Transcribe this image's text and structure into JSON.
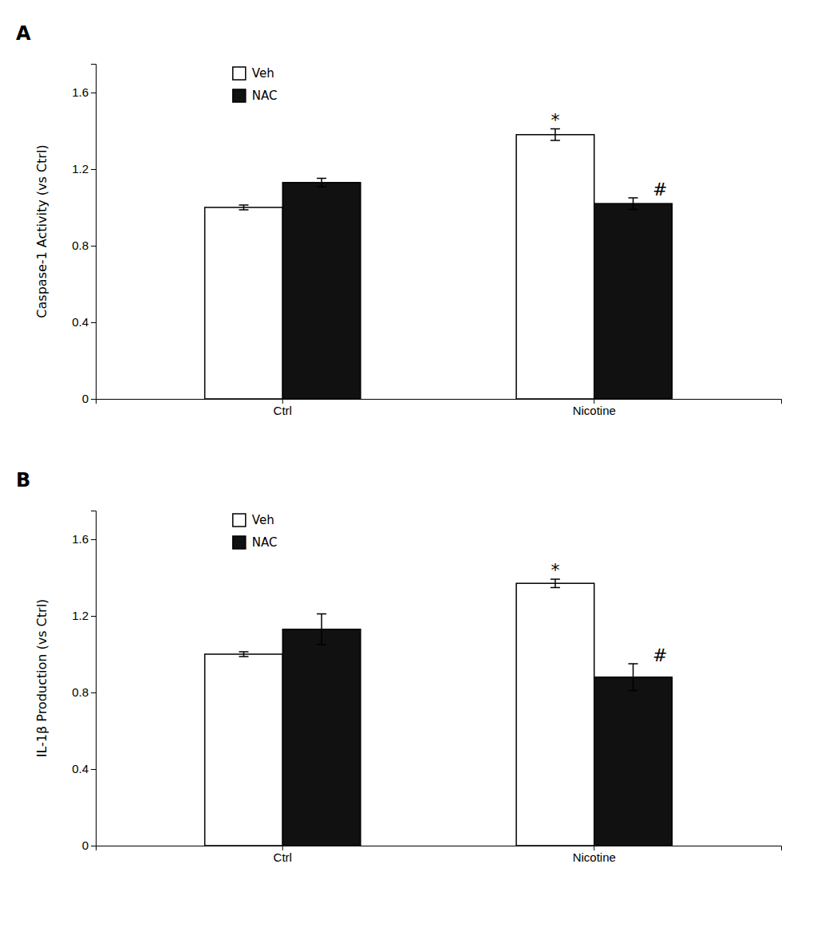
{
  "chart_data": [
    {
      "type": "bar",
      "title": "A",
      "ylabel": "Caspase-1 Activity (vs Ctrl)",
      "categories": [
        "Ctrl",
        "Nicotine"
      ],
      "series": [
        {
          "name": "Veh",
          "color": "#ffffff",
          "values": [
            1.0,
            1.38
          ],
          "errors": [
            0.012,
            0.03
          ]
        },
        {
          "name": "NAC",
          "color": "#111111",
          "values": [
            1.13,
            1.02
          ],
          "errors": [
            0.022,
            0.03
          ]
        }
      ],
      "annotations": [
        {
          "text": "*",
          "series": 0,
          "index": 1
        },
        {
          "text": "#",
          "series": 1,
          "index": 1
        }
      ],
      "ylim": [
        0,
        1.75
      ],
      "yticks": [
        0,
        0.4,
        0.8,
        1.2,
        1.6
      ],
      "legend": "upper left",
      "grid": false
    },
    {
      "type": "bar",
      "title": "B",
      "ylabel": "IL-1β Production (vs Ctrl)",
      "categories": [
        "Ctrl",
        "Nicotine"
      ],
      "series": [
        {
          "name": "Veh",
          "color": "#ffffff",
          "values": [
            1.0,
            1.37
          ],
          "errors": [
            0.012,
            0.022
          ]
        },
        {
          "name": "NAC",
          "color": "#111111",
          "values": [
            1.13,
            0.88
          ],
          "errors": [
            0.08,
            0.07
          ]
        }
      ],
      "annotations": [
        {
          "text": "*",
          "series": 0,
          "index": 1
        },
        {
          "text": "#",
          "series": 1,
          "index": 1
        }
      ],
      "ylim": [
        0,
        1.75
      ],
      "yticks": [
        0,
        0.4,
        0.8,
        1.2,
        1.6
      ],
      "legend": "upper left",
      "grid": false
    }
  ]
}
